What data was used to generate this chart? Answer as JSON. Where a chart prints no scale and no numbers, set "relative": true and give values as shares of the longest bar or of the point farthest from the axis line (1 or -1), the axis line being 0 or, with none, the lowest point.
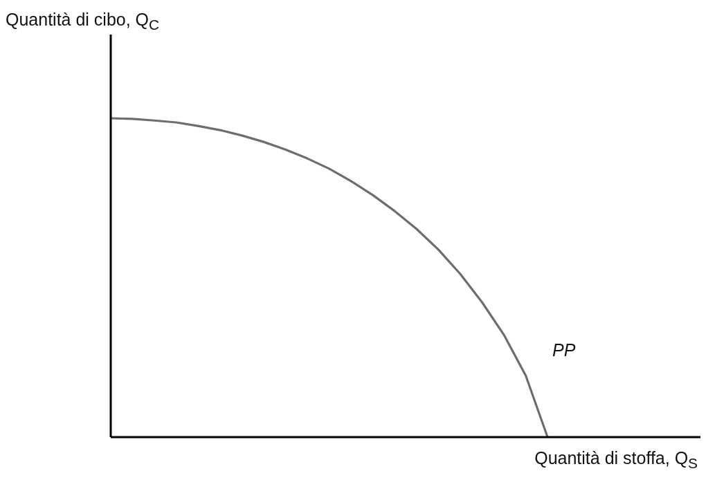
{
  "chart_data": {
    "type": "line",
    "relative": true,
    "xlabel": "Quantità di stoffa, Q$_{S}$",
    "ylabel": "Quantità di cibo, Q$_{C}$",
    "annotations": [
      "PP"
    ],
    "categories": [
      null,
      null,
      null,
      null,
      null,
      null,
      null,
      null,
      null,
      null,
      null,
      null,
      null,
      null,
      null,
      null,
      null,
      null,
      null,
      null,
      null,
      null,
      null,
      null,
      null,
      null,
      null,
      null
    ],
    "series": [
      {
        "color": "#6d6d6d",
        "values": [
          1.0,
          0.998,
          0.993,
          0.987,
          0.976,
          0.963,
          0.946,
          0.926,
          0.902,
          0.874,
          0.842,
          0.803,
          0.759,
          0.709,
          0.653,
          0.588,
          0.512,
          0.423,
          0.321,
          0.193,
          0,
          null,
          null,
          null,
          null,
          null,
          null,
          null
        ]
      }
    ],
    "grid": false,
    "legend": false,
    "marker": "none",
    "line_style": "solid"
  }
}
